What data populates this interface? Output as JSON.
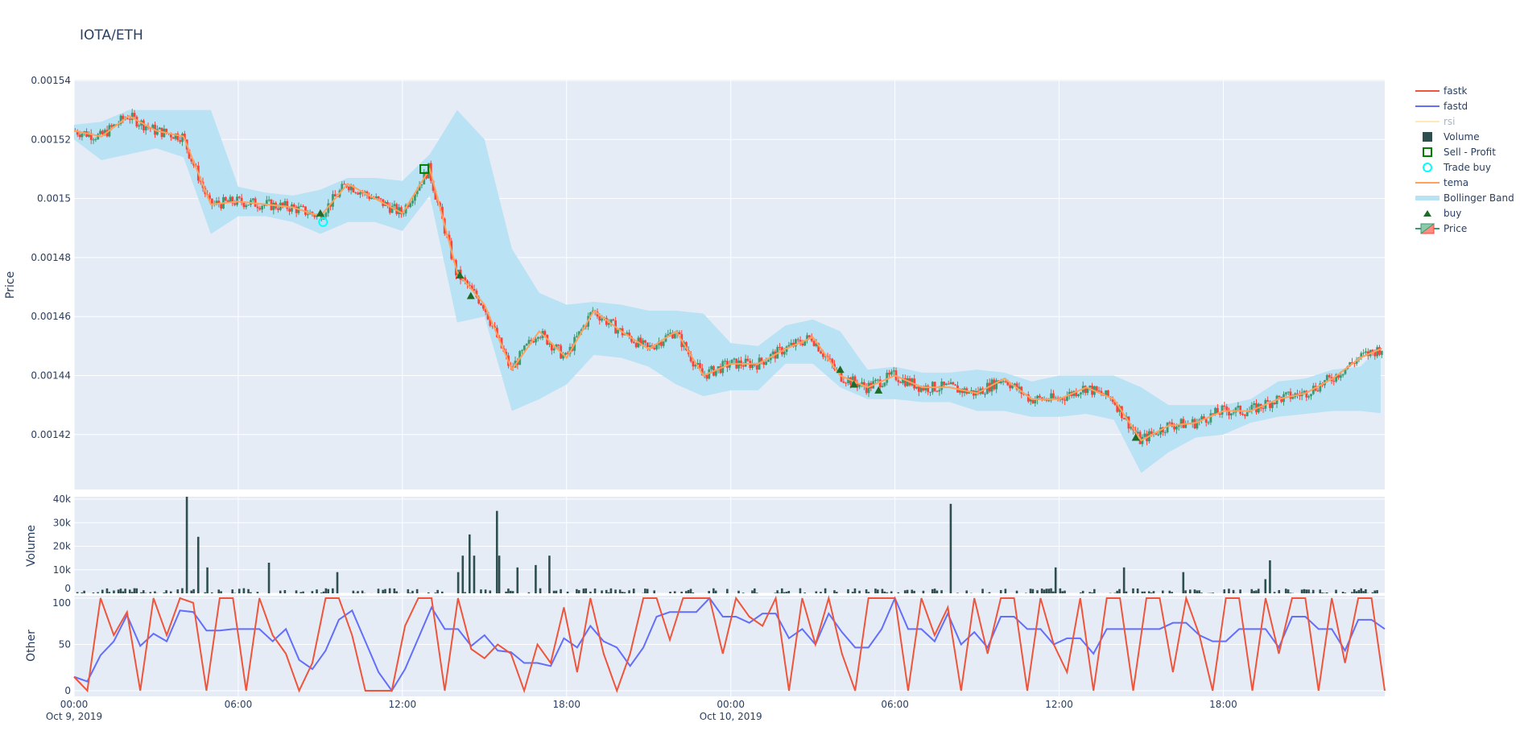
{
  "chart_data": {
    "title": "IOTA/ETH",
    "type": "candlestick+subplots",
    "x_unit": "hours since Oct 9, 2019 00:00",
    "x_ticks": [
      "00:00",
      "06:00",
      "12:00",
      "18:00",
      "00:00",
      "06:00",
      "12:00",
      "18:00"
    ],
    "x_tick_hours": [
      0,
      6,
      12,
      18,
      24,
      30,
      36,
      42
    ],
    "x_date_labels": [
      {
        "hour": 0,
        "label": "Oct 9, 2019"
      },
      {
        "hour": 24,
        "label": "Oct 10, 2019"
      }
    ],
    "x_range_hours": [
      0,
      47.9
    ],
    "grid": true,
    "legend_position": "right",
    "legend": [
      {
        "name": "fastk",
        "kind": "line",
        "color": "#ef553b"
      },
      {
        "name": "fastd",
        "kind": "line",
        "color": "#636efa"
      },
      {
        "name": "rsi",
        "kind": "line",
        "color": "#fecb52",
        "hidden": true
      },
      {
        "name": "Volume",
        "kind": "bar",
        "color": "#2f4f4f"
      },
      {
        "name": "Sell - Profit",
        "kind": "square",
        "color": "#008000"
      },
      {
        "name": "Trade buy",
        "kind": "circle",
        "color": "#00ffff"
      },
      {
        "name": "tema",
        "kind": "line",
        "color": "#ffa15a"
      },
      {
        "name": "Bollinger Band",
        "kind": "band",
        "color": "#b9e2f5"
      },
      {
        "name": "buy",
        "kind": "triangle",
        "color": "#1e6b2a"
      },
      {
        "name": "Price",
        "kind": "candle",
        "color": "#3d9970"
      }
    ],
    "price_panel": {
      "ylabel": "Price",
      "ylim": [
        0.001402,
        0.00154
      ],
      "y_ticks": [
        "0.00154",
        "0.00152",
        "0.0015",
        "0.00148",
        "0.00146",
        "0.00144",
        "0.00142"
      ],
      "y_tick_values": [
        0.00154,
        0.00152,
        0.0015,
        0.00148,
        0.00146,
        0.00144,
        0.00142
      ],
      "increasing_color": "#3d9970",
      "decreasing_color": "#ff4136",
      "hours": [
        0,
        1,
        2,
        3,
        4,
        5,
        6,
        7,
        8,
        9,
        10,
        11,
        12,
        13,
        14,
        15,
        16,
        17,
        18,
        19,
        20,
        21,
        22,
        23,
        24,
        25,
        26,
        27,
        28,
        29,
        30,
        31,
        32,
        33,
        34,
        35,
        36,
        37,
        38,
        39,
        40,
        41,
        42,
        43,
        44,
        45,
        46,
        47,
        48
      ],
      "tema": [
        0.001523,
        0.001521,
        0.001528,
        0.001523,
        0.001521,
        0.001498,
        0.001499,
        0.001498,
        0.001497,
        0.001494,
        0.001505,
        0.0015,
        0.001495,
        0.00151,
        0.001475,
        0.001464,
        0.001442,
        0.001455,
        0.001446,
        0.001462,
        0.001455,
        0.001449,
        0.001455,
        0.00144,
        0.001444,
        0.001444,
        0.001449,
        0.001453,
        0.00144,
        0.001436,
        0.00144,
        0.001436,
        0.001436,
        0.001434,
        0.001439,
        0.001432,
        0.001432,
        0.001436,
        0.001432,
        0.001418,
        0.001423,
        0.001424,
        0.001428,
        0.001428,
        0.001432,
        0.001434,
        0.001439,
        0.001446,
        0.00145
      ],
      "bb_upper": [
        0.001525,
        0.001526,
        0.00153,
        0.00153,
        0.00153,
        0.00153,
        0.001504,
        0.001502,
        0.001501,
        0.001503,
        0.001507,
        0.001507,
        0.001506,
        0.001515,
        0.00153,
        0.00152,
        0.001483,
        0.001468,
        0.001464,
        0.001465,
        0.001464,
        0.001462,
        0.001462,
        0.001461,
        0.001451,
        0.00145,
        0.001457,
        0.001459,
        0.001455,
        0.001442,
        0.001443,
        0.001441,
        0.001441,
        0.001442,
        0.001441,
        0.001438,
        0.00144,
        0.00144,
        0.00144,
        0.001436,
        0.00143,
        0.00143,
        0.00143,
        0.001432,
        0.001438,
        0.001439,
        0.001442,
        0.001443,
        0.001452
      ],
      "bb_lower": [
        0.00152,
        0.001513,
        0.001515,
        0.001517,
        0.001514,
        0.001488,
        0.001494,
        0.001494,
        0.001492,
        0.001488,
        0.001492,
        0.001492,
        0.001489,
        0.001501,
        0.001458,
        0.00146,
        0.001428,
        0.001432,
        0.001437,
        0.001447,
        0.001446,
        0.001443,
        0.001437,
        0.001433,
        0.001435,
        0.001435,
        0.001444,
        0.001444,
        0.001436,
        0.001432,
        0.001432,
        0.001431,
        0.001431,
        0.001428,
        0.001428,
        0.001426,
        0.001426,
        0.001427,
        0.001425,
        0.001407,
        0.001414,
        0.001419,
        0.00142,
        0.001424,
        0.001426,
        0.001427,
        0.001428,
        0.001428,
        0.001427
      ],
      "buy_markers": [
        {
          "hour": 9.0,
          "price": 0.001495
        },
        {
          "hour": 14.1,
          "price": 0.001474
        },
        {
          "hour": 14.5,
          "price": 0.001467
        },
        {
          "hour": 28.0,
          "price": 0.001442
        },
        {
          "hour": 28.5,
          "price": 0.001437
        },
        {
          "hour": 29.4,
          "price": 0.001435
        },
        {
          "hour": 38.8,
          "price": 0.001419
        }
      ],
      "trade_buy": [
        {
          "hour": 9.1,
          "price": 0.001492
        }
      ],
      "sell_profit": [
        {
          "hour": 12.8,
          "price": 0.00151
        }
      ]
    },
    "volume_panel": {
      "ylabel": "Volume",
      "ylim": [
        0,
        41000
      ],
      "y_ticks": [
        "0",
        "10k",
        "20k",
        "30k",
        "40k"
      ],
      "y_tick_values": [
        0,
        10000,
        20000,
        30000,
        40000
      ],
      "spikes": [
        {
          "hour": 4.1,
          "value": 41000
        },
        {
          "hour": 4.5,
          "value": 24000
        },
        {
          "hour": 4.8,
          "value": 11000
        },
        {
          "hour": 7.05,
          "value": 13000
        },
        {
          "hour": 9.6,
          "value": 9000
        },
        {
          "hour": 14.0,
          "value": 9000
        },
        {
          "hour": 14.2,
          "value": 16000
        },
        {
          "hour": 14.4,
          "value": 25000
        },
        {
          "hour": 14.6,
          "value": 16000
        },
        {
          "hour": 15.4,
          "value": 35000
        },
        {
          "hour": 15.5,
          "value": 16000
        },
        {
          "hour": 16.2,
          "value": 11000
        },
        {
          "hour": 16.8,
          "value": 12000
        },
        {
          "hour": 17.3,
          "value": 16000
        },
        {
          "hour": 32.0,
          "value": 38000
        },
        {
          "hour": 35.8,
          "value": 11000
        },
        {
          "hour": 38.3,
          "value": 11000
        },
        {
          "hour": 40.5,
          "value": 9000
        },
        {
          "hour": 43.5,
          "value": 6000
        },
        {
          "hour": 43.7,
          "value": 14000
        }
      ]
    },
    "other_panel": {
      "ylabel": "Other",
      "ylim": [
        -4,
        100
      ],
      "y_ticks": [
        "0",
        "50",
        "100"
      ],
      "y_tick_values": [
        0,
        50,
        100
      ],
      "fastk": [
        15,
        0,
        100,
        60,
        85,
        0,
        100,
        60,
        100,
        95,
        0,
        100,
        100,
        0,
        100,
        60,
        40,
        0,
        30,
        100,
        100,
        60,
        0,
        0,
        0,
        70,
        100,
        100,
        0,
        100,
        45,
        35,
        50,
        40,
        0,
        50,
        30,
        90,
        20,
        100,
        40,
        0,
        40,
        100,
        100,
        55,
        100,
        100,
        100,
        40,
        100,
        80,
        70,
        100,
        0,
        100,
        50,
        100,
        40,
        0,
        100,
        100,
        100,
        0,
        100,
        60,
        90,
        0,
        100,
        40,
        100,
        100,
        0,
        100,
        50,
        20,
        100,
        0,
        100,
        100,
        0,
        100,
        100,
        20,
        100,
        60,
        0,
        100,
        100,
        0,
        100,
        40,
        100,
        100,
        0,
        100,
        30,
        100,
        100,
        0
      ]
    }
  }
}
